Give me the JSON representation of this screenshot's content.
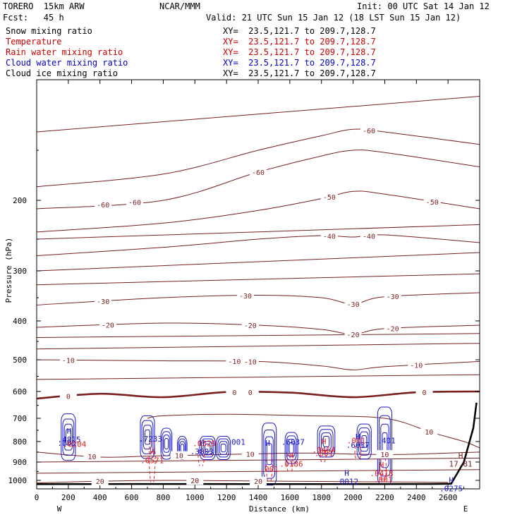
{
  "header": {
    "model": "TORERO  15km ARW",
    "org": "NCAR/MMM",
    "init": "Init: 00 UTC Sat 14 Jan 12",
    "fcst": "Fcst:   45 h",
    "valid": "Valid: 21 UTC Sun 15 Jan 12 (18 LST Sun 15 Jan 12)"
  },
  "fields": [
    {
      "name": "Snow mixing ratio",
      "xy": "XY=  23.5,121.7 to 209.7,128.7",
      "color": "#000000"
    },
    {
      "name": "Temperature",
      "xy": "XY=  23.5,121.7 to 209.7,128.7",
      "color": "#cc0000"
    },
    {
      "name": "Rain water mixing ratio",
      "xy": "XY=  23.5,121.7 to 209.7,128.7",
      "color": "#cc0000"
    },
    {
      "name": "Cloud water mixing ratio",
      "xy": "XY=  23.5,121.7 to 209.7,128.7",
      "color": "#0000cc"
    },
    {
      "name": "Cloud ice mixing ratio",
      "xy": "XY=  23.5,121.7 to 209.7,128.7",
      "color": "#000000"
    }
  ],
  "colors": {
    "temperature": "#7a1e1e",
    "rain": "#e02020",
    "cloud_water": "#1a1acc",
    "terrain": "#000000"
  },
  "chart_data": {
    "type": "line",
    "xlabel": "Distance (km)",
    "ylabel": "Pressure (hPa)",
    "xlim": [
      0,
      2800
    ],
    "ylim": [
      1050,
      100
    ],
    "y_scale": "log-pressure",
    "xticks": [
      0,
      200,
      400,
      600,
      800,
      1000,
      1200,
      1400,
      1600,
      1800,
      2000,
      2200,
      2400,
      2600
    ],
    "yticks": [
      200,
      300,
      400,
      500,
      600,
      700,
      800,
      900,
      1000
    ],
    "x_end_labels": {
      "left": "W",
      "right": "E"
    },
    "grid": false,
    "isotherms": [
      {
        "label": -60,
        "x": [
          0,
          800,
          1400,
          1800,
          2000,
          2200,
          2800
        ],
        "p": [
          210,
          200,
          170,
          155,
          150,
          152,
          165
        ],
        "labels": [
          [
            420,
            "-60"
          ],
          [
            620,
            "-60"
          ],
          [
            1400,
            "-60"
          ]
        ]
      },
      {
        "label": -60,
        "x": [
          0,
          800,
          1400,
          1800,
          2000,
          2200,
          2800
        ],
        "p": [
          185,
          172,
          150,
          138,
          133,
          135,
          145
        ],
        "labels": [
          [
            2100,
            "-60"
          ]
        ]
      },
      {
        "label": -50,
        "x": [
          0,
          800,
          1400,
          1800,
          2000,
          2200,
          2800
        ],
        "p": [
          240,
          228,
          212,
          198,
          190,
          193,
          210
        ],
        "labels": [
          [
            1850,
            "-50"
          ],
          [
            2500,
            "-50"
          ]
        ]
      },
      {
        "label": -40,
        "x": [
          0,
          800,
          1400,
          1800,
          2000,
          2200,
          2800
        ],
        "p": [
          275,
          262,
          250,
          245,
          247,
          244,
          255
        ],
        "labels": [
          [
            1850,
            "-40"
          ],
          [
            2100,
            "-40"
          ]
        ]
      },
      {
        "label": -30,
        "x": [
          0,
          800,
          1400,
          1800,
          2000,
          2200,
          2800
        ],
        "p": [
          365,
          350,
          345,
          350,
          363,
          348,
          340
        ],
        "labels": [
          [
            420,
            "-30"
          ],
          [
            1320,
            "-30"
          ],
          [
            2000,
            "-30"
          ],
          [
            2250,
            "-30"
          ]
        ]
      },
      {
        "label": -20,
        "x": [
          0,
          800,
          1400,
          1800,
          2000,
          2200,
          2800
        ],
        "p": [
          415,
          405,
          410,
          420,
          432,
          418,
          410
        ],
        "labels": [
          [
            450,
            "-20"
          ],
          [
            1350,
            "-20"
          ],
          [
            2000,
            "-20"
          ],
          [
            2250,
            "-20"
          ]
        ]
      },
      {
        "label": -10,
        "x": [
          0,
          800,
          1400,
          1800,
          2000,
          2200,
          2800
        ],
        "p": [
          500,
          503,
          505,
          518,
          530,
          520,
          505
        ],
        "labels": [
          [
            200,
            "-10"
          ],
          [
            1250,
            "-10"
          ],
          [
            1350,
            "-10"
          ],
          [
            2400,
            "-10"
          ]
        ]
      },
      {
        "label": 0,
        "x": [
          0,
          400,
          800,
          1200,
          1600,
          2000,
          2400,
          2800
        ],
        "p": [
          625,
          608,
          620,
          602,
          604,
          620,
          603,
          600
        ],
        "labels": [
          [
            200,
            "0"
          ],
          [
            1250,
            "0"
          ],
          [
            1350,
            "0"
          ],
          [
            2450,
            "0"
          ]
        ],
        "bold": true
      },
      {
        "label": 10,
        "x": [
          0,
          400,
          700,
          1000,
          1300,
          1700,
          2000,
          2300,
          2600,
          2800
        ],
        "p": [
          850,
          875,
          870,
          865,
          860,
          855,
          860,
          862,
          855,
          850
        ],
        "labels": [
          [
            350,
            "10"
          ],
          [
            900,
            "10"
          ],
          [
            1350,
            "10"
          ],
          [
            2200,
            "10"
          ]
        ]
      },
      {
        "label": 10,
        "x": [
          700,
          800,
          1200,
          1700,
          2200,
          2500,
          2700,
          2800
        ],
        "p": [
          700,
          690,
          684,
          690,
          700,
          760,
          800,
          830
        ],
        "labels": [
          [
            2480,
            "10"
          ]
        ]
      },
      {
        "label": 20,
        "x": [
          0,
          400,
          800,
          1200,
          1600,
          2000,
          2400,
          2600
        ],
        "p": [
          1015,
          1005,
          1000,
          1002,
          1005,
          1008,
          1010,
          1012
        ],
        "labels": [
          [
            400,
            "20"
          ],
          [
            1000,
            "20"
          ],
          [
            1400,
            "20"
          ]
        ]
      }
    ],
    "extra_temp_lines": [
      {
        "x": [
          0,
          2800
        ],
        "p": [
          135,
          110
        ]
      },
      {
        "x": [
          0,
          2800
        ],
        "p": [
          250,
          230
        ]
      },
      {
        "x": [
          0,
          2800
        ],
        "p": [
          300,
          270
        ]
      },
      {
        "x": [
          0,
          2800
        ],
        "p": [
          325,
          305
        ]
      },
      {
        "x": [
          0,
          2800
        ],
        "p": [
          440,
          430
        ]
      },
      {
        "x": [
          0,
          2800
        ],
        "p": [
          470,
          455
        ]
      },
      {
        "x": [
          0,
          2800
        ],
        "p": [
          560,
          545
        ]
      },
      {
        "x": [
          0,
          2800
        ],
        "p": [
          900,
          880
        ]
      },
      {
        "x": [
          0,
          2800
        ],
        "p": [
          960,
          940
        ]
      }
    ],
    "cloud_water_cells": [
      {
        "x": 200,
        "p": 780,
        "w": 90,
        "h": 120
      },
      {
        "x": 700,
        "p": 780,
        "w": 90,
        "h": 110
      },
      {
        "x": 820,
        "p": 810,
        "w": 70,
        "h": 80
      },
      {
        "x": 920,
        "p": 830,
        "w": 60,
        "h": 60
      },
      {
        "x": 1080,
        "p": 830,
        "w": 100,
        "h": 60
      },
      {
        "x": 1180,
        "p": 830,
        "w": 90,
        "h": 60
      },
      {
        "x": 1470,
        "p": 860,
        "w": 90,
        "h": 160
      },
      {
        "x": 1610,
        "p": 830,
        "w": 80,
        "h": 80
      },
      {
        "x": 1830,
        "p": 800,
        "w": 110,
        "h": 80
      },
      {
        "x": 2070,
        "p": 800,
        "w": 90,
        "h": 90
      },
      {
        "x": 2200,
        "p": 820,
        "w": 90,
        "h": 200
      }
    ],
    "rain_curtains": [
      {
        "x": 730,
        "p_top": 800,
        "p_bot": 1010
      },
      {
        "x": 1040,
        "p_top": 840,
        "p_bot": 920
      },
      {
        "x": 1470,
        "p_top": 860,
        "p_bot": 1010
      },
      {
        "x": 1600,
        "p_top": 860,
        "p_bot": 960
      },
      {
        "x": 1810,
        "p_top": 840,
        "p_bot": 900
      },
      {
        "x": 2030,
        "p_top": 820,
        "p_bot": 890
      },
      {
        "x": 2190,
        "p_top": 880,
        "p_bot": 1010
      }
    ],
    "maxima": [
      {
        "x": 205,
        "p": 765,
        "marker": "H",
        "value": ".4815",
        "color": "cloud_water"
      },
      {
        "x": 190,
        "p": 820,
        "marker": "",
        "value": ".001",
        "color": "cloud_water"
      },
      {
        "x": 240,
        "p": 825,
        "marker": "",
        "value": ".0204",
        "color": "rain"
      },
      {
        "x": 720,
        "p": 800,
        "marker": "",
        "value": ".7233",
        "color": "cloud_water"
      },
      {
        "x": 730,
        "p": 862,
        "marker": "H",
        "value": ".0571",
        "color": "rain"
      },
      {
        "x": 1045,
        "p": 820,
        "marker": "H",
        "value": ".3803",
        "color": "cloud_water"
      },
      {
        "x": 1060,
        "p": 822,
        "marker": "",
        "value": ".0329",
        "color": "rain"
      },
      {
        "x": 1260,
        "p": 815,
        "marker": "",
        "value": ".001",
        "color": "cloud_water"
      },
      {
        "x": 1460,
        "p": 820,
        "marker": "H",
        "value": "",
        "color": "cloud_water"
      },
      {
        "x": 1620,
        "p": 815,
        "marker": "",
        "value": ".6637",
        "color": "cloud_water"
      },
      {
        "x": 1610,
        "p": 880,
        "marker": "H",
        "value": ".0186",
        "color": "rain"
      },
      {
        "x": 1470,
        "p": 952,
        "marker": "",
        "value": ".001",
        "color": "rain"
      },
      {
        "x": 1815,
        "p": 812,
        "marker": "H",
        "value": ".0464",
        "color": "rain"
      },
      {
        "x": 1815,
        "p": 870,
        "marker": "",
        "value": ".001",
        "color": "rain"
      },
      {
        "x": 2030,
        "p": 790,
        "marker": "H",
        "value": ".6037",
        "color": "cloud_water"
      },
      {
        "x": 2020,
        "p": 808,
        "marker": "",
        "value": ".001",
        "color": "rain"
      },
      {
        "x": 2210,
        "p": 808,
        "marker": "",
        "value": ".401",
        "color": "cloud_water"
      },
      {
        "x": 2180,
        "p": 930,
        "marker": "H",
        "value": ".0418",
        "color": "rain"
      },
      {
        "x": 2190,
        "p": 1010,
        "marker": "",
        "value": ".001",
        "color": "rain"
      },
      {
        "x": 1960,
        "p": 975,
        "marker": "H",
        "value": ".0012",
        "color": "cloud_water"
      },
      {
        "x": 2620,
        "p": 1015,
        "marker": "H",
        "value": ".0275",
        "color": "cloud_water"
      },
      {
        "x": 2680,
        "p": 880,
        "marker": "H",
        "value": "17.81",
        "color": "temperature"
      }
    ],
    "terrain": {
      "x": [
        0,
        200,
        600,
        1000,
        1400,
        1800,
        2200,
        2500,
        2620,
        2700,
        2760,
        2780
      ],
      "p": [
        1022,
        1022,
        1021,
        1021,
        1022,
        1022,
        1022,
        1021,
        1020,
        900,
        740,
        640
      ]
    }
  }
}
